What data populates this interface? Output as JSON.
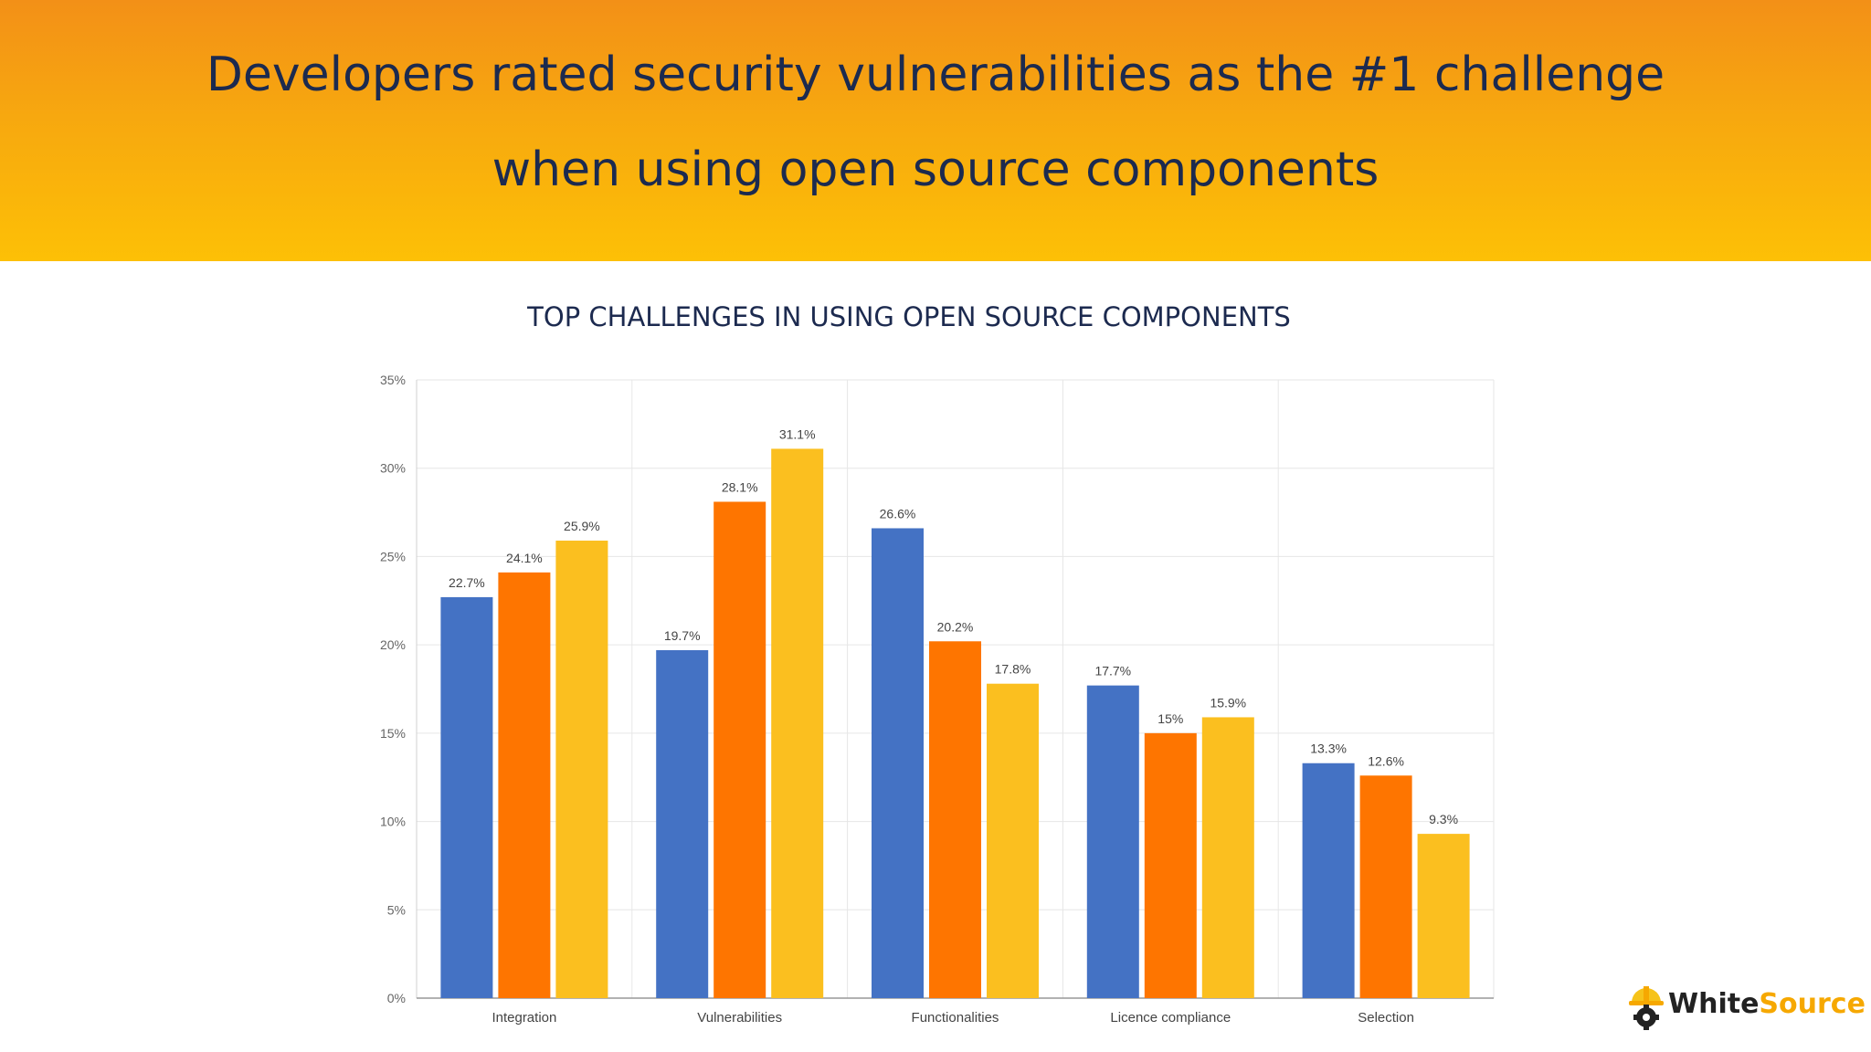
{
  "header": {
    "line1": "Developers rated security vulnerabilities as the #1 challenge",
    "line2": "when using open source components"
  },
  "chart_data": {
    "type": "bar",
    "title": "TOP CHALLENGES IN USING OPEN SOURCE COMPONENTS",
    "categories": [
      "Integration",
      "Vulnerabilities",
      "Functionalities",
      "Licence compliance",
      "Selection"
    ],
    "series": [
      {
        "values": [
          22.7,
          19.7,
          26.6,
          17.7,
          13.3
        ],
        "labels": [
          "22.7%",
          "19.7%",
          "26.6%",
          "17.7%",
          "13.3%"
        ],
        "color": "#4472c4"
      },
      {
        "values": [
          24.1,
          28.1,
          20.2,
          15,
          12.6
        ],
        "labels": [
          "24.1%",
          "28.1%",
          "20.2%",
          "15%",
          "12.6%"
        ],
        "color": "#fe7500"
      },
      {
        "values": [
          25.9,
          31.1,
          17.8,
          15.9,
          9.3
        ],
        "labels": [
          "25.9%",
          "31.1%",
          "17.8%",
          "15.9%",
          "9.3%"
        ],
        "color": "#fbbf1f"
      }
    ],
    "yticks": [
      "0%",
      "5%",
      "10%",
      "15%",
      "20%",
      "25%",
      "30%",
      "35%"
    ],
    "ylim": [
      0,
      35
    ],
    "xlabel": "",
    "ylabel": "",
    "grid": true,
    "legend": "none"
  },
  "logo": {
    "part1": "White",
    "part2": "Source",
    "icon": "hard-hat-gear-icon",
    "accent": "#f6a800"
  }
}
